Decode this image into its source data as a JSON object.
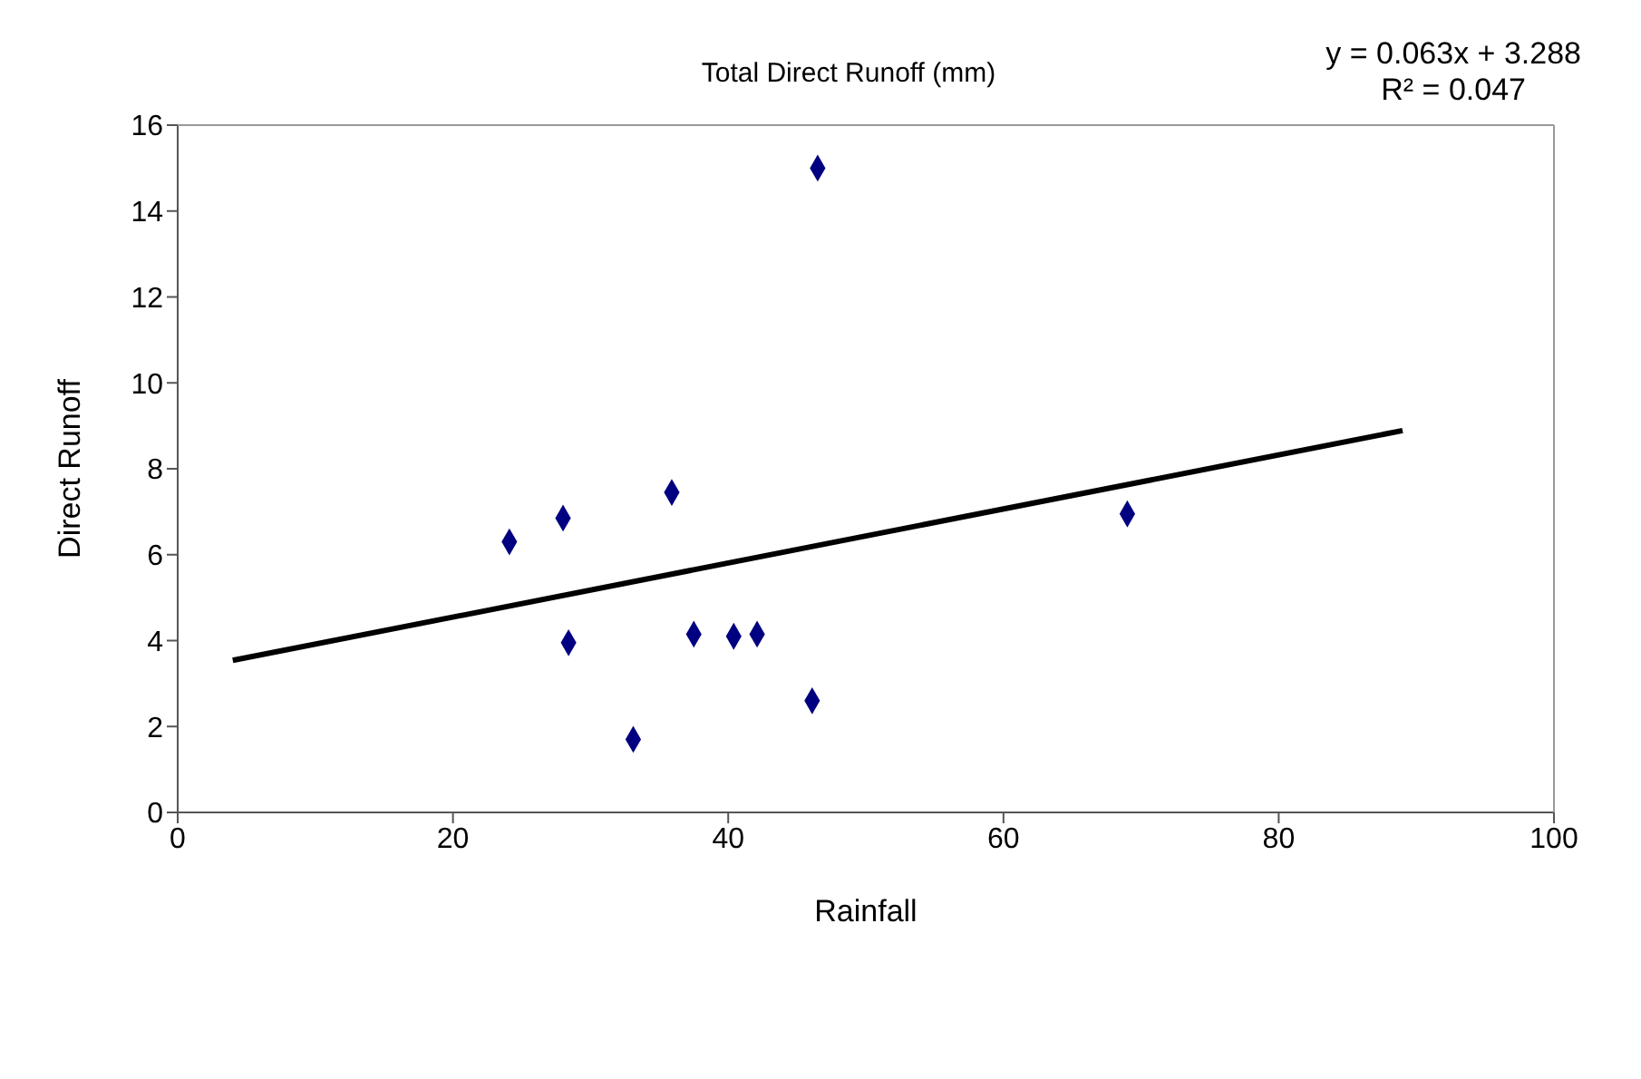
{
  "chart_data": {
    "type": "scatter",
    "title": "Total Direct Runoff (mm)",
    "xlabel": "Rainfall",
    "ylabel": "Direct Runoff",
    "annotations": [
      "y = 0.063x + 3.288",
      "R² = 0.047"
    ],
    "series": [
      {
        "color": "#000080",
        "marker": "diamond",
        "x": [
          24.1,
          28.0,
          28.4,
          33.1,
          35.9,
          37.5,
          40.4,
          42.1,
          46.1,
          46.5,
          69.0
        ],
        "values": [
          6.3,
          6.85,
          3.95,
          1.7,
          7.45,
          4.15,
          4.1,
          4.15,
          2.6,
          15.0,
          6.95
        ]
      },
      {
        "type": "line",
        "color": "#000000",
        "marker": "none",
        "line_style": "solid",
        "x": [
          4,
          89
        ],
        "values": [
          3.54,
          8.89
        ]
      }
    ],
    "xlim": [
      0,
      100
    ],
    "xticks": [
      0,
      20,
      40,
      60,
      80,
      100
    ],
    "ylim": [
      0,
      16
    ],
    "yticks": [
      0,
      2,
      4,
      6,
      8,
      10,
      12,
      14,
      16
    ],
    "grid": false,
    "legend": false
  }
}
